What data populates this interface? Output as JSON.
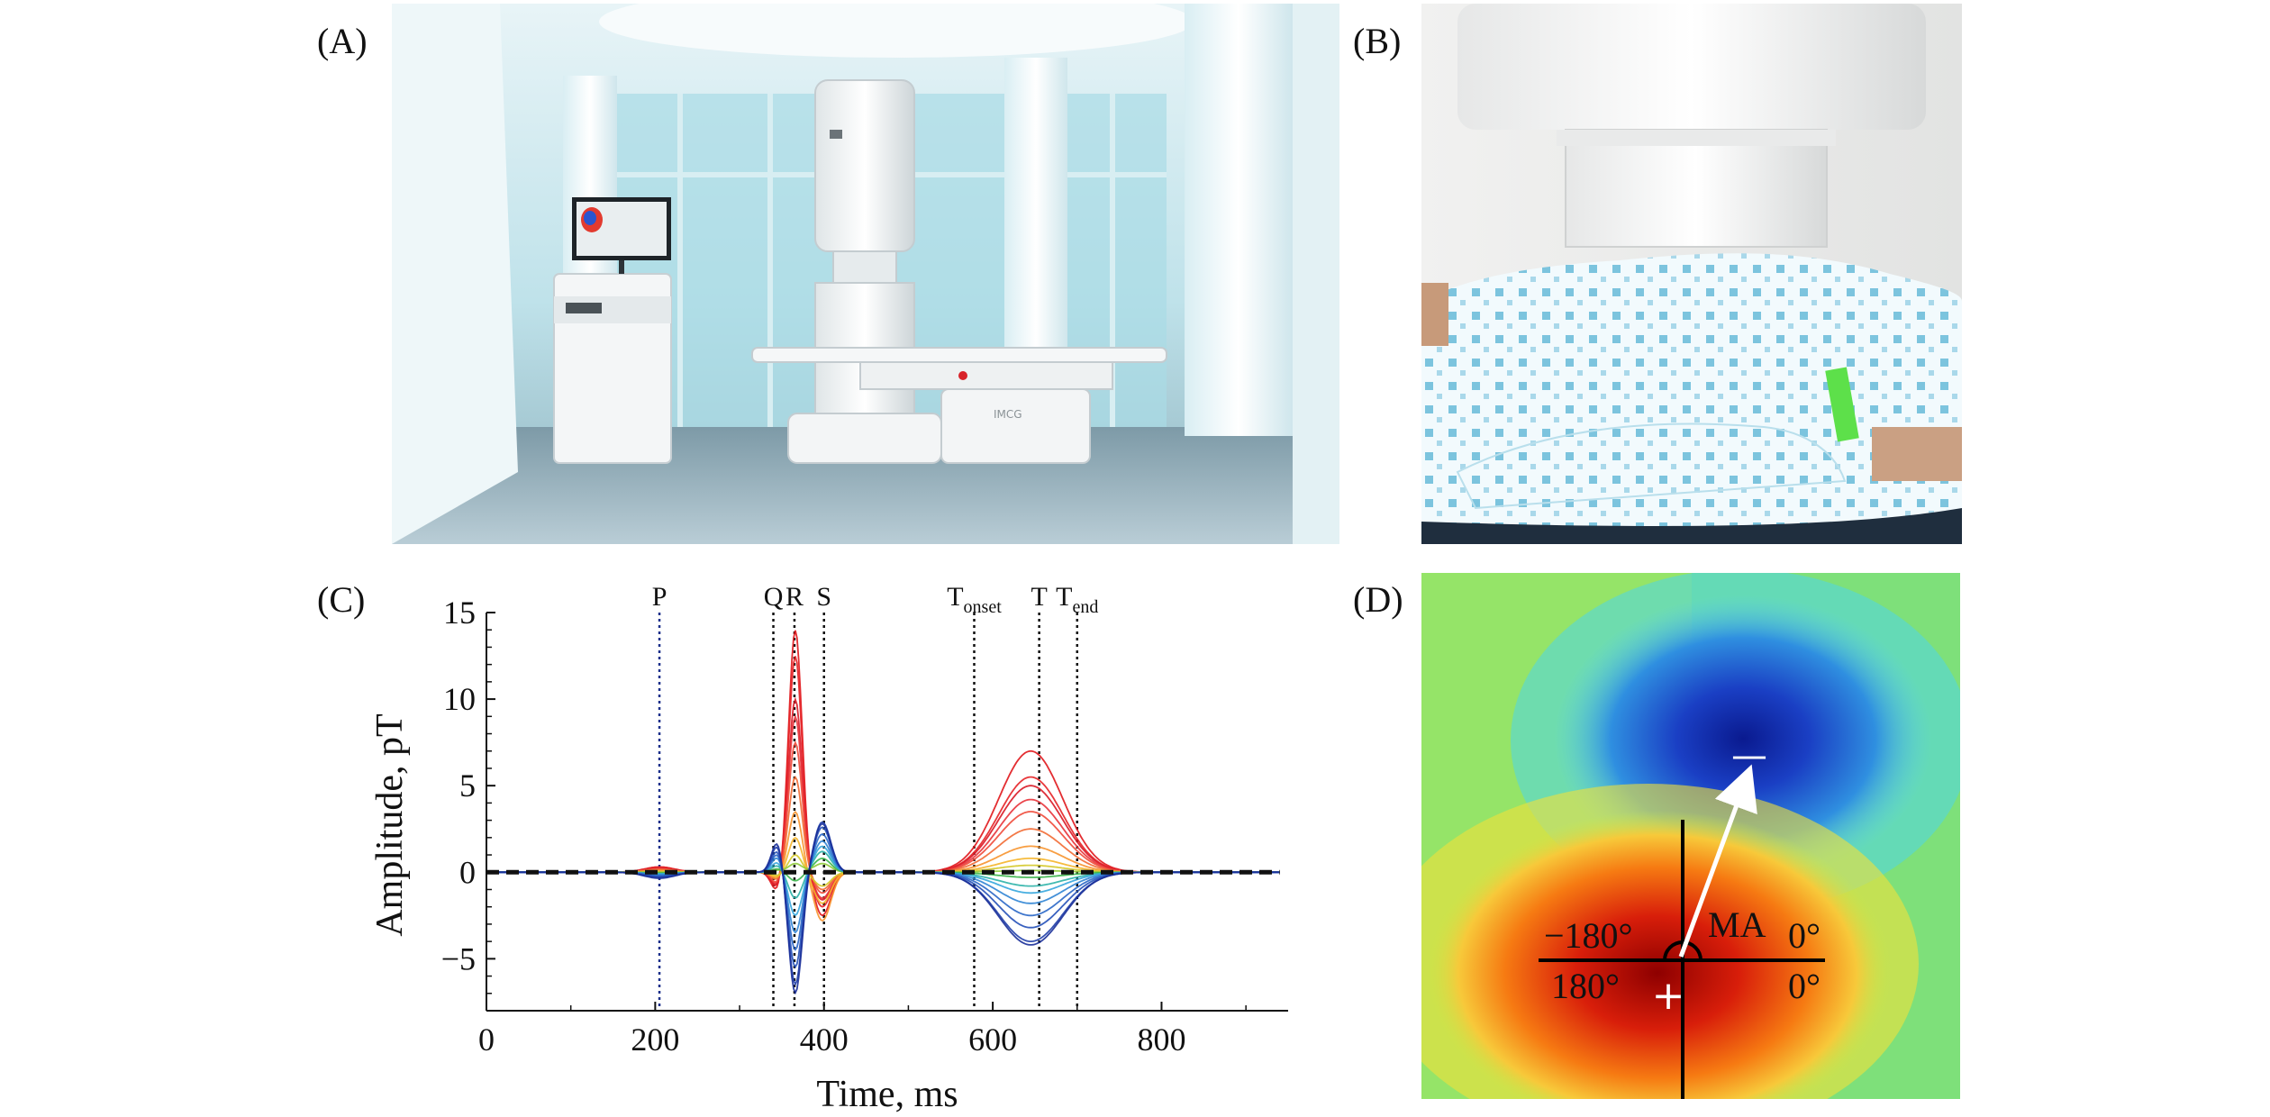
{
  "panels": {
    "a": {
      "label": "(A)",
      "device_brand": "IMCG"
    },
    "b": {
      "label": "(B)"
    },
    "c": {
      "label": "(C)"
    },
    "d": {
      "label": "(D)"
    }
  },
  "chart_data": {
    "type": "line",
    "xlabel": "Time, ms",
    "ylabel": "Amplitude, pT",
    "xlim": [
      0,
      950
    ],
    "ylim": [
      -8,
      15
    ],
    "xticks": [
      0,
      200,
      400,
      600,
      800
    ],
    "yticks": [
      -5,
      0,
      5,
      10,
      15
    ],
    "events": [
      {
        "label": "P",
        "sub": "",
        "x": 205,
        "color": "#1b2f8a"
      },
      {
        "label": "Q",
        "sub": "",
        "x": 340,
        "color": "#111111"
      },
      {
        "label": "R",
        "sub": "",
        "x": 365,
        "color": "#111111"
      },
      {
        "label": "S",
        "sub": "",
        "x": 400,
        "color": "#111111"
      },
      {
        "label": "T",
        "sub": "onset",
        "x": 578,
        "color": "#111111"
      },
      {
        "label": "T",
        "sub": "",
        "x": 655,
        "color": "#111111"
      },
      {
        "label": "T",
        "sub": "end",
        "x": 700,
        "color": "#111111"
      }
    ],
    "series_description_note": "",
    "series": [
      {
        "color": "#e0161b",
        "r": 14.0,
        "q": -1.2,
        "s": -2.5,
        "t": 7.0,
        "p": 0.3
      },
      {
        "color": "#e52226",
        "r": 12.5,
        "q": -1.0,
        "s": -2.0,
        "t": 5.5,
        "p": 0.3
      },
      {
        "color": "#d91a26",
        "r": 10.0,
        "q": -0.9,
        "s": -1.6,
        "t": 5.0,
        "p": 0.25
      },
      {
        "color": "#e8333a",
        "r": 9.0,
        "q": -0.8,
        "s": -1.5,
        "t": 4.2,
        "p": 0.2
      },
      {
        "color": "#f04a3a",
        "r": 7.5,
        "q": -0.7,
        "s": -1.2,
        "t": 3.5,
        "p": 0.2
      },
      {
        "color": "#f26a33",
        "r": 5.5,
        "q": -0.5,
        "s": -1.0,
        "t": 2.5,
        "p": 0.15
      },
      {
        "color": "#f7942e",
        "r": 3.5,
        "q": -0.4,
        "s": -2.8,
        "t": 1.5,
        "p": 0.1
      },
      {
        "color": "#f5b52a",
        "r": 2.0,
        "q": -0.3,
        "s": -1.8,
        "t": 0.8,
        "p": 0.05
      },
      {
        "color": "#d4c92a",
        "r": 1.0,
        "q": -0.2,
        "s": -0.8,
        "t": 0.4,
        "p": 0.0
      },
      {
        "color": "#8fcb3a",
        "r": 0.5,
        "q": 0.1,
        "s": 0.5,
        "t": 0.1,
        "p": 0.0
      },
      {
        "color": "#3bb54a",
        "r": -0.5,
        "q": 0.2,
        "s": 0.8,
        "t": -0.3,
        "p": -0.05
      },
      {
        "color": "#2cb3a8",
        "r": -1.5,
        "q": 0.4,
        "s": 1.2,
        "t": -0.8,
        "p": -0.1
      },
      {
        "color": "#35a6dd",
        "r": -2.5,
        "q": 0.6,
        "s": 1.5,
        "t": -1.2,
        "p": -0.1
      },
      {
        "color": "#2f84d4",
        "r": -3.5,
        "q": 0.9,
        "s": 1.8,
        "t": -1.8,
        "p": -0.15
      },
      {
        "color": "#2a67c6",
        "r": -4.5,
        "q": 1.1,
        "s": 2.2,
        "t": -2.5,
        "p": -0.2
      },
      {
        "color": "#2450b8",
        "r": -5.5,
        "q": 1.3,
        "s": 2.6,
        "t": -3.2,
        "p": -0.25
      },
      {
        "color": "#1f3ea8",
        "r": -6.5,
        "q": 1.6,
        "s": 2.9,
        "t": -4.0,
        "p": -0.3
      },
      {
        "color": "#1a2f99",
        "r": -7.0,
        "q": 1.8,
        "s": 2.8,
        "t": -4.2,
        "p": -0.35
      }
    ],
    "baseline_dash_color": "#111111"
  },
  "map": {
    "angle_left_top": "−180°",
    "angle_right_top": "0°",
    "angle_left_bottom": "180°",
    "angle_right_bottom": "0°",
    "ma_label": "MA",
    "neg_marker": "—",
    "pos_marker": "+",
    "colors": {
      "red": "#b00000",
      "blue": "#0a1a8f",
      "green": "#5fe36a"
    }
  }
}
